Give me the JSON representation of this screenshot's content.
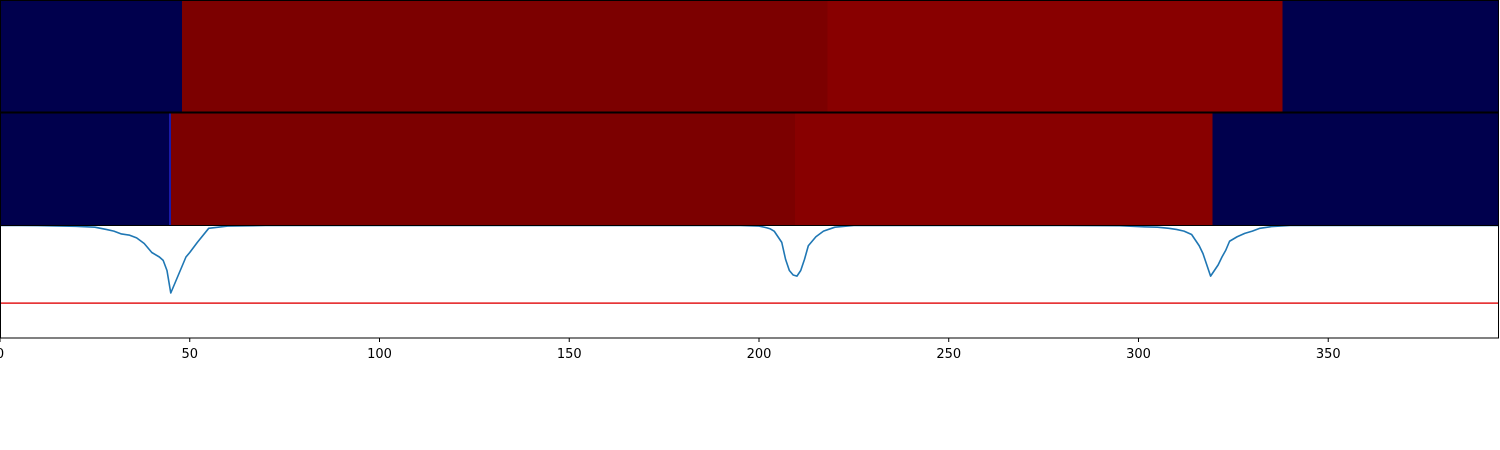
{
  "chart_data": [
    {
      "type": "heatmap",
      "segments": [
        {
          "start": 0,
          "end": 48,
          "color": "#00004d"
        },
        {
          "start": 48,
          "end": 218,
          "color": "#7c0000"
        },
        {
          "start": 218,
          "end": 338,
          "color": "#880000"
        },
        {
          "start": 338,
          "end": 395,
          "color": "#00004d"
        }
      ]
    },
    {
      "type": "heatmap",
      "segments": [
        {
          "start": 0,
          "end": 44.5,
          "color": "#00004d"
        },
        {
          "start": 44.5,
          "end": 45,
          "color": "#1a1aa8"
        },
        {
          "start": 45,
          "end": 209.5,
          "color": "#7c0000"
        },
        {
          "start": 209.5,
          "end": 319.5,
          "color": "#880000"
        },
        {
          "start": 319.5,
          "end": 395,
          "color": "#00004d"
        }
      ]
    },
    {
      "type": "line",
      "xlim": [
        0,
        395
      ],
      "ylim": [
        0,
        1
      ],
      "grid": false,
      "series": [
        {
          "color": "#1f77b4",
          "x": [
            0,
            5,
            10,
            15,
            20,
            25,
            28,
            30,
            32,
            34,
            36,
            38,
            40,
            42,
            43,
            44,
            45,
            46,
            47,
            48,
            49,
            50,
            52,
            55,
            60,
            70,
            100,
            150,
            180,
            195,
            200,
            202,
            203,
            204,
            205,
            206,
            207,
            208,
            209,
            210,
            211,
            212,
            213,
            215,
            217,
            220,
            225,
            240,
            260,
            280,
            295,
            300,
            305,
            308,
            310,
            312,
            314,
            315,
            316,
            317,
            318,
            319,
            320,
            321,
            322,
            323,
            324,
            326,
            328,
            330,
            332,
            335,
            340,
            360,
            380,
            395
          ],
          "y": [
            1.0,
            1.0,
            0.999,
            0.996,
            0.993,
            0.985,
            0.965,
            0.95,
            0.925,
            0.915,
            0.89,
            0.84,
            0.76,
            0.72,
            0.69,
            0.6,
            0.4,
            0.48,
            0.56,
            0.64,
            0.72,
            0.76,
            0.85,
            0.975,
            0.995,
            1.0,
            1.0,
            1.0,
            1.0,
            1.0,
            0.995,
            0.98,
            0.97,
            0.95,
            0.9,
            0.85,
            0.7,
            0.6,
            0.56,
            0.55,
            0.6,
            0.7,
            0.82,
            0.9,
            0.95,
            0.985,
            1.0,
            1.0,
            1.0,
            1.0,
            0.998,
            0.99,
            0.985,
            0.975,
            0.965,
            0.95,
            0.92,
            0.87,
            0.82,
            0.75,
            0.65,
            0.55,
            0.6,
            0.65,
            0.72,
            0.78,
            0.86,
            0.9,
            0.93,
            0.95,
            0.975,
            0.99,
            1.0,
            1.0,
            1.0,
            1.0
          ]
        },
        {
          "color": "#e31a1c",
          "x": [
            0,
            395
          ],
          "y": [
            0.31,
            0.31
          ]
        }
      ],
      "xticks": [
        0,
        50,
        100,
        150,
        200,
        250,
        300,
        350
      ],
      "xticklabels": [
        "0",
        "50",
        "100",
        "150",
        "200",
        "250",
        "300",
        "350"
      ]
    }
  ]
}
